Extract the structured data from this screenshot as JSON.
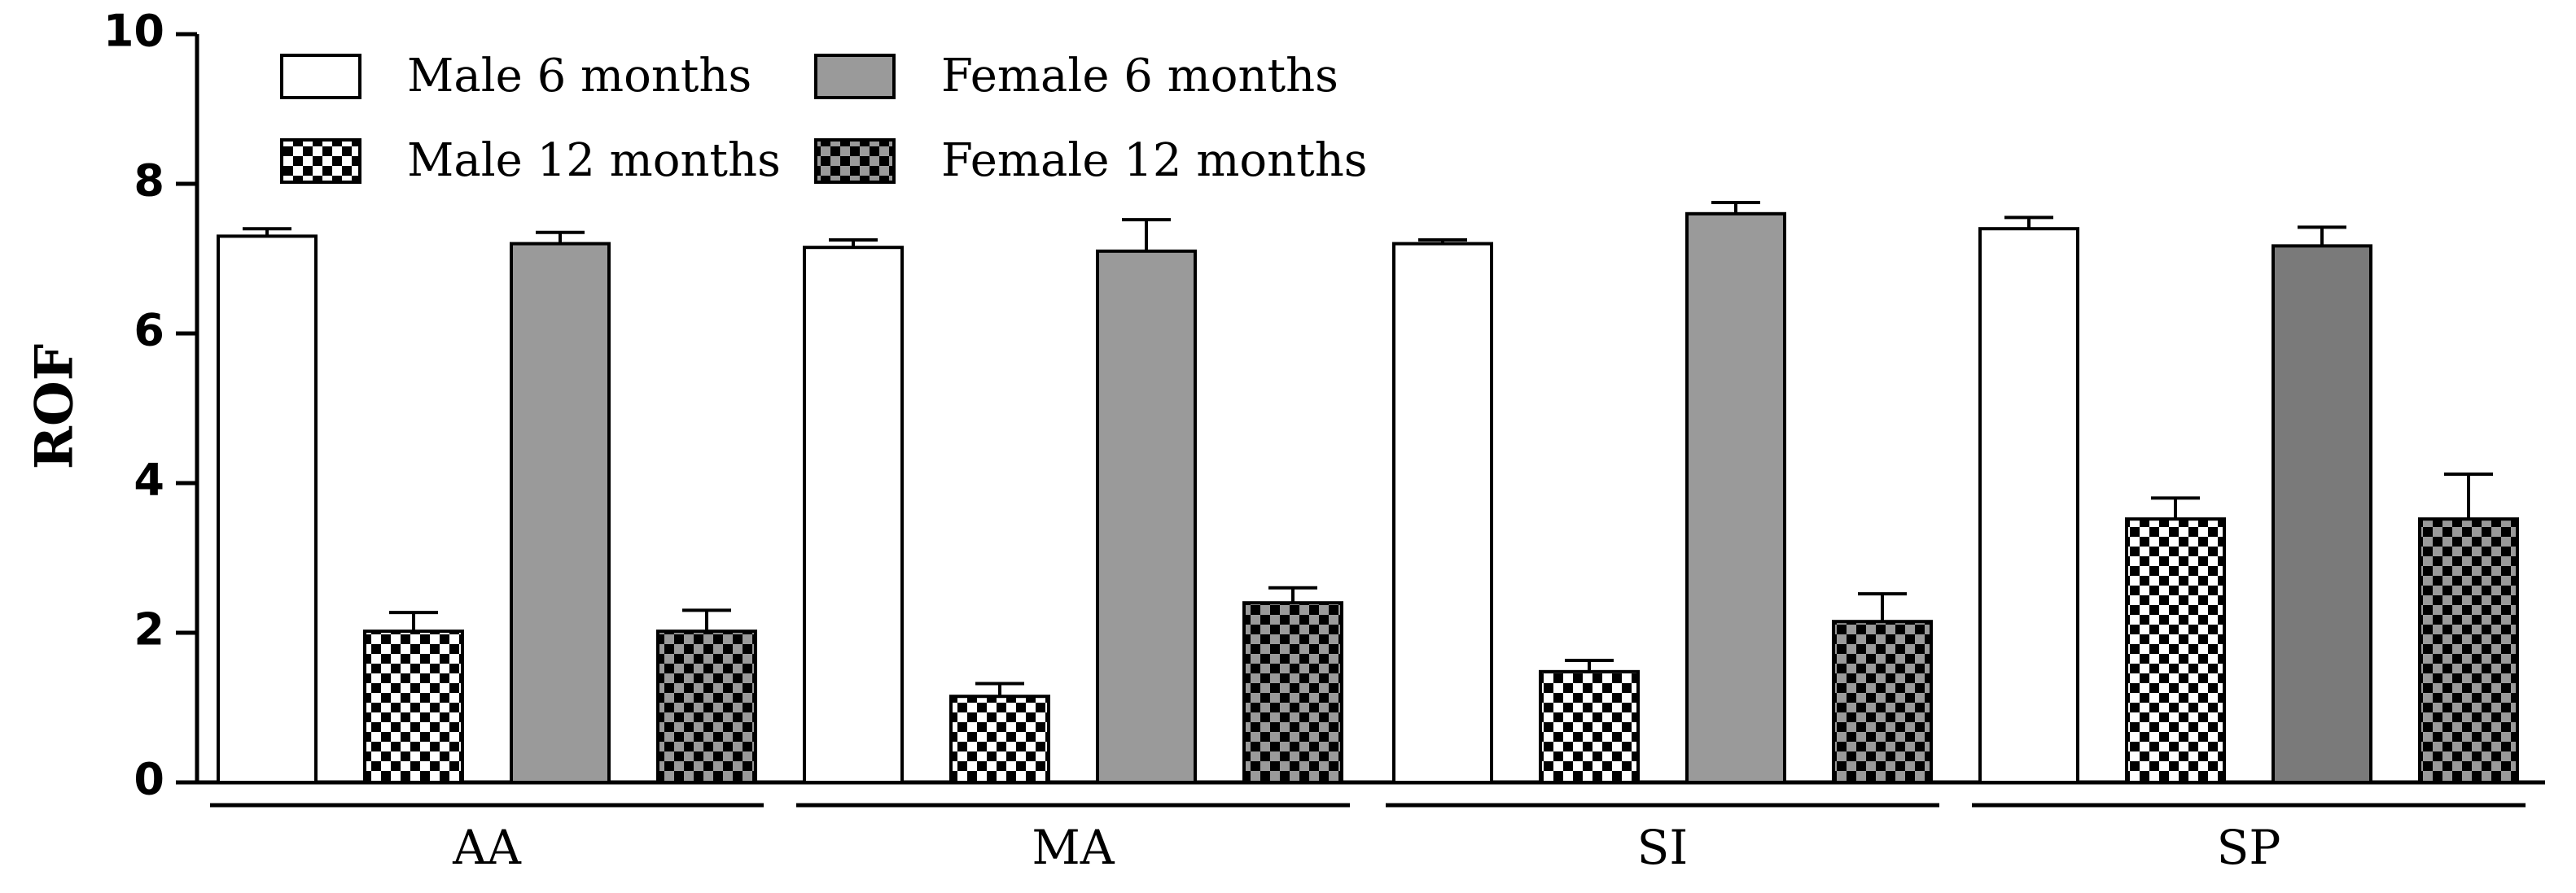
{
  "chart_data": {
    "type": "bar",
    "title": "",
    "xlabel": "",
    "ylabel": "ROF",
    "ylim": [
      0,
      10
    ],
    "yticks": [
      "0",
      "2",
      "4",
      "6",
      "8",
      "10"
    ],
    "categories": [
      "AA",
      "MA",
      "SI",
      "SP"
    ],
    "series": [
      {
        "name": "Male 6 months",
        "values": [
          7.3,
          7.15,
          7.2,
          7.4
        ],
        "errors": [
          0.1,
          0.1,
          0.05,
          0.15
        ]
      },
      {
        "name": "Male 12 months",
        "values": [
          2.02,
          1.15,
          1.48,
          3.52
        ],
        "errors": [
          0.25,
          0.17,
          0.15,
          0.28
        ]
      },
      {
        "name": "Female 6 months",
        "values": [
          7.2,
          7.1,
          7.6,
          7.17
        ],
        "errors": [
          0.15,
          0.42,
          0.15,
          0.25
        ]
      },
      {
        "name": "Female 12 months",
        "values": [
          2.02,
          2.4,
          2.15,
          3.52
        ],
        "errors": [
          0.28,
          0.2,
          0.37,
          0.6
        ]
      }
    ],
    "legend_position": "top-left"
  }
}
